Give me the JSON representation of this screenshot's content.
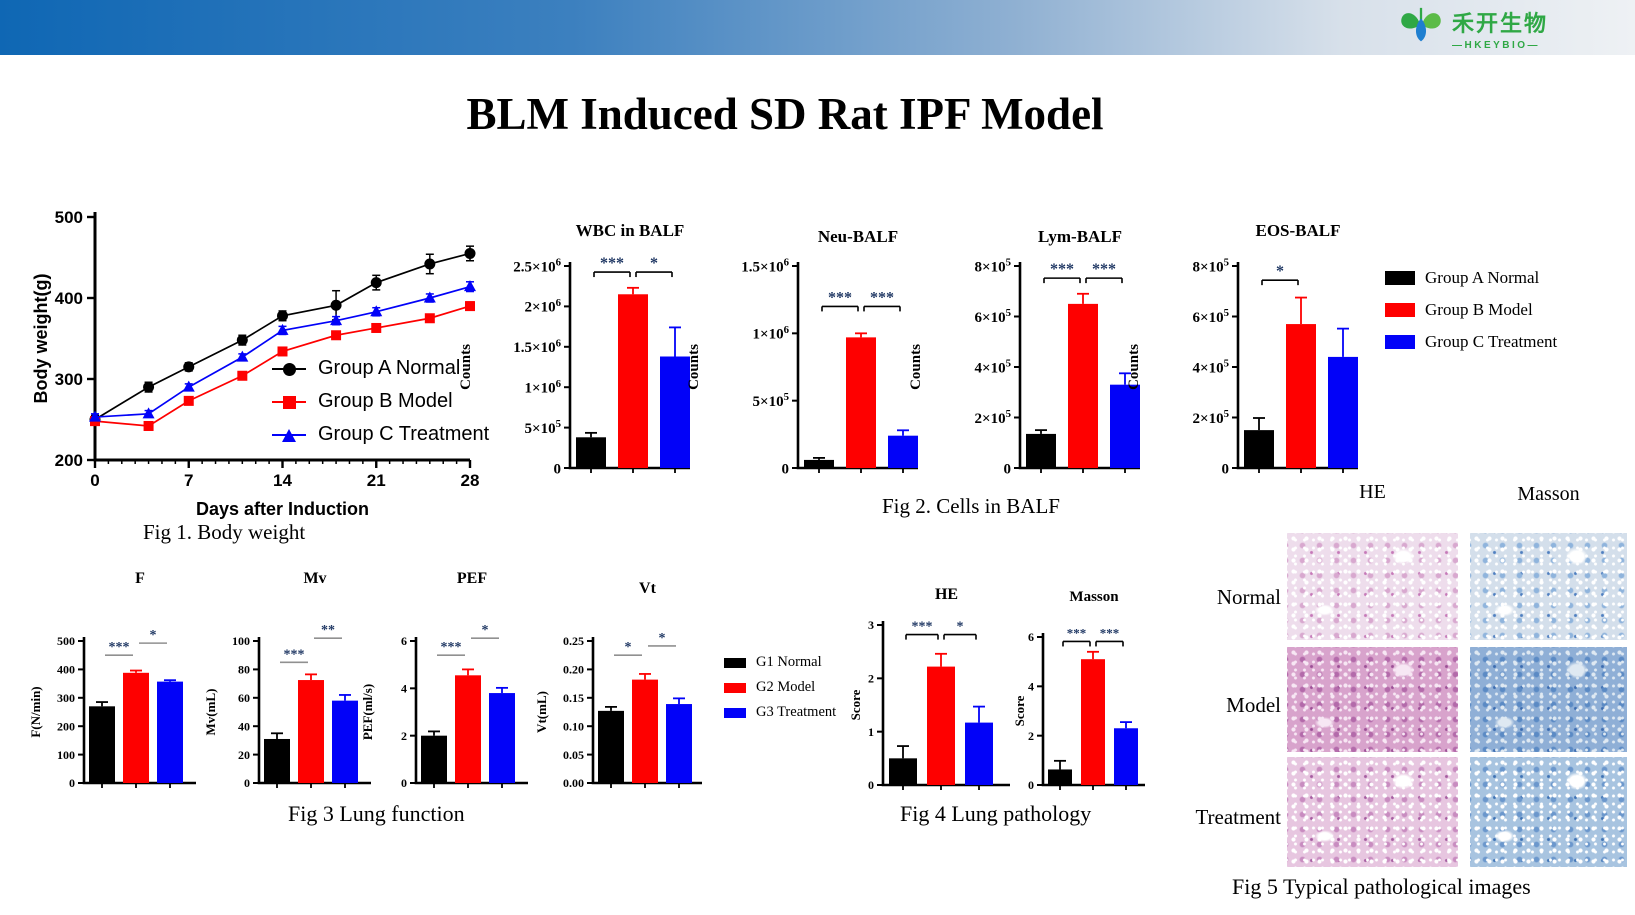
{
  "header": {
    "bar_colors": [
      "#0f67b4",
      "#eef1f4"
    ],
    "logo": {
      "cn": "禾开生物",
      "en": "—HKEYBIO—",
      "green": "#2fa845",
      "blue": "#1f7fd0"
    }
  },
  "title": {
    "text": "BLM Induced SD Rat IPF Model"
  },
  "groups": {
    "a": {
      "label": "Group A Normal",
      "color": "#000000"
    },
    "b": {
      "label": "Group B Model",
      "color": "#fe0000"
    },
    "c": {
      "label": "Group C Treatment",
      "color": "#0202f8"
    }
  },
  "fig3_legend": [
    "G1 Normal",
    "G2 Model",
    "G3 Treatment"
  ],
  "style": {
    "bar_colors": [
      "#000000",
      "#fe0000",
      "#0202f8"
    ],
    "star_color": "#203864",
    "sig_line_black": "#000000",
    "sig_line_gray": "#909090"
  },
  "captions": {
    "fig1": "Fig 1. Body weight",
    "fig2": "Fig 2. Cells in BALF",
    "fig3": "Fig 3 Lung function",
    "fig4": "Fig 4 Lung pathology",
    "fig5": "Fig 5 Typical pathological images"
  },
  "fig5": {
    "col_headers": [
      "HE",
      "Masson"
    ],
    "row_labels": [
      "Normal",
      "Model",
      "Treatment"
    ],
    "images": [
      {
        "name": "he-normal",
        "palette": {
          "base": "#eeddec",
          "dot": "#ffffff",
          "blob": "#d8a8cf",
          "accent": "#c679b8"
        }
      },
      {
        "name": "masson-normal",
        "palette": {
          "base": "#d4dfeb",
          "dot": "#ffffff",
          "blob": "#8fb4dc",
          "accent": "#4f7fc0"
        }
      },
      {
        "name": "he-model",
        "palette": {
          "base": "#d8a3cc",
          "dot": "#f7e7f4",
          "blob": "#b36aaa",
          "accent": "#9c4f96"
        }
      },
      {
        "name": "masson-model",
        "palette": {
          "base": "#8fafd6",
          "dot": "#dfe9f2",
          "blob": "#5b8ac4",
          "accent": "#3c6cb0"
        }
      },
      {
        "name": "he-treatment",
        "palette": {
          "base": "#e7c6e0",
          "dot": "#ffffff",
          "blob": "#c88cc0",
          "accent": "#a55ca0"
        }
      },
      {
        "name": "masson-treatment",
        "palette": {
          "base": "#a8c4e0",
          "dot": "#ffffff",
          "blob": "#6b97cc",
          "accent": "#3f72b4"
        }
      }
    ]
  },
  "chart_data": [
    {
      "id": "body_weight",
      "type": "line",
      "xlabel": "Days after Induction",
      "ylabel": "Body weight(g)",
      "xmin": 0,
      "xmax": 28,
      "ymin": 200,
      "ymax": 500,
      "xticks": [
        0,
        7,
        14,
        21,
        28
      ],
      "yticks": [
        200,
        300,
        400,
        500
      ],
      "x": [
        0,
        4,
        7,
        11,
        14,
        18,
        21,
        25,
        28
      ],
      "series": [
        {
          "name": "Group A Normal",
          "color": "#000000",
          "marker": "circle",
          "values": [
            250,
            290,
            315,
            348,
            378,
            391,
            419,
            442,
            455
          ],
          "errors": [
            5,
            6,
            5,
            6,
            6,
            18,
            9,
            12,
            9
          ]
        },
        {
          "name": "Group B Model",
          "color": "#fe0000",
          "marker": "square",
          "values": [
            248,
            242,
            273,
            304,
            334,
            354,
            363,
            375,
            390
          ],
          "errors": [
            3,
            5,
            4,
            4,
            4,
            4,
            4,
            4,
            5
          ]
        },
        {
          "name": "Group C Treatment",
          "color": "#0202f8",
          "marker": "triangle",
          "values": [
            253,
            257,
            290,
            327,
            360,
            372,
            383,
            400,
            414
          ],
          "errors": [
            4,
            4,
            4,
            4,
            5,
            5,
            5,
            5,
            6
          ]
        }
      ],
      "legend_position": "inside-right-bottom"
    },
    {
      "id": "wbc",
      "type": "bar",
      "title": "WBC in BALF",
      "ylabel": "Counts",
      "categories": [
        "Group A Normal",
        "Group B Model",
        "Group C Treatment"
      ],
      "ymax": 2500000,
      "yticks": [
        {
          "v": 0,
          "t": "0"
        },
        {
          "v": 500000,
          "t": "5×10^5"
        },
        {
          "v": 1000000,
          "t": "1×10^6"
        },
        {
          "v": 1500000,
          "t": "1.5×10^6"
        },
        {
          "v": 2000000,
          "t": "2×10^6"
        },
        {
          "v": 2500000,
          "t": "2.5×10^6"
        }
      ],
      "values": [
        380000,
        2150000,
        1380000
      ],
      "errors": [
        55000,
        80000,
        360000
      ],
      "sig": [
        {
          "a": 0,
          "b": 1,
          "label": "***",
          "y": 0.97
        },
        {
          "a": 1,
          "b": 2,
          "label": "*",
          "y": 0.97
        }
      ]
    },
    {
      "id": "neu",
      "type": "bar",
      "title": "Neu-BALF",
      "ylabel": "Counts",
      "categories": [
        "Group A Normal",
        "Group B Model",
        "Group C Treatment"
      ],
      "ymax": 1500000,
      "yticks": [
        {
          "v": 0,
          "t": "0"
        },
        {
          "v": 500000,
          "t": "5×10^5"
        },
        {
          "v": 1000000,
          "t": "1×10^6"
        },
        {
          "v": 1500000,
          "t": "1.5×10^6"
        }
      ],
      "values": [
        60000,
        970000,
        240000
      ],
      "errors": [
        15000,
        30000,
        40000
      ],
      "sig": [
        {
          "a": 0,
          "b": 1,
          "label": "***",
          "y": 0.8
        },
        {
          "a": 1,
          "b": 2,
          "label": "***",
          "y": 0.8
        }
      ]
    },
    {
      "id": "lym",
      "type": "bar",
      "title": "Lym-BALF",
      "ylabel": "Counts",
      "categories": [
        "Group A Normal",
        "Group B Model",
        "Group C Treatment"
      ],
      "ymax": 800000,
      "yticks": [
        {
          "v": 0,
          "t": "0"
        },
        {
          "v": 200000,
          "t": "2×10^5"
        },
        {
          "v": 400000,
          "t": "4×10^5"
        },
        {
          "v": 600000,
          "t": "6×10^5"
        },
        {
          "v": 800000,
          "t": "8×10^5"
        }
      ],
      "values": [
        135000,
        650000,
        330000
      ],
      "errors": [
        15000,
        40000,
        45000
      ],
      "sig": [
        {
          "a": 0,
          "b": 1,
          "label": "***",
          "y": 0.94
        },
        {
          "a": 1,
          "b": 2,
          "label": "***",
          "y": 0.94
        }
      ]
    },
    {
      "id": "eos",
      "type": "bar",
      "title": "EOS-BALF",
      "ylabel": "Counts",
      "categories": [
        "Group A Normal",
        "Group B Model",
        "Group C Treatment"
      ],
      "ymax": 800000,
      "yticks": [
        {
          "v": 0,
          "t": "0"
        },
        {
          "v": 200000,
          "t": "2×10^5"
        },
        {
          "v": 400000,
          "t": "4×10^5"
        },
        {
          "v": 600000,
          "t": "6×10^5"
        },
        {
          "v": 800000,
          "t": "8×10^5"
        }
      ],
      "values": [
        150000,
        570000,
        440000
      ],
      "errors": [
        48000,
        105000,
        112000
      ],
      "sig": [
        {
          "a": 0,
          "b": 1,
          "label": "*",
          "y": 0.93
        }
      ]
    },
    {
      "id": "f",
      "type": "bar",
      "title": "F",
      "ylabel": "F(N/min)",
      "categories": [
        "G1 Normal",
        "G2 Model",
        "G3 Treatment"
      ],
      "ymax": 500,
      "yticks": [
        {
          "v": 0,
          "t": "0"
        },
        {
          "v": 100,
          "t": "100"
        },
        {
          "v": 200,
          "t": "200"
        },
        {
          "v": 300,
          "t": "300"
        },
        {
          "v": 400,
          "t": "400"
        },
        {
          "v": 500,
          "t": "500"
        }
      ],
      "values": [
        270,
        388,
        357
      ],
      "errors": [
        15,
        8,
        5
      ],
      "sig": [
        {
          "a": 0,
          "b": 1,
          "label": "***",
          "y": 0.9
        },
        {
          "a": 1,
          "b": 2,
          "label": "*",
          "y": 0.985
        }
      ]
    },
    {
      "id": "mv",
      "type": "bar",
      "title": "Mv",
      "ylabel": "Mv(mL)",
      "categories": [
        "G1 Normal",
        "G2 Model",
        "G3 Treatment"
      ],
      "ymax": 100,
      "yticks": [
        {
          "v": 0,
          "t": "0"
        },
        {
          "v": 20,
          "t": "20"
        },
        {
          "v": 40,
          "t": "40"
        },
        {
          "v": 60,
          "t": "60"
        },
        {
          "v": 80,
          "t": "80"
        },
        {
          "v": 100,
          "t": "100"
        }
      ],
      "values": [
        31,
        72.5,
        58
      ],
      "errors": [
        4,
        4,
        4
      ],
      "sig": [
        {
          "a": 0,
          "b": 1,
          "label": "***",
          "y": 0.85
        },
        {
          "a": 1,
          "b": 2,
          "label": "**",
          "y": 1.02
        }
      ]
    },
    {
      "id": "pef",
      "type": "bar",
      "title": "PEF",
      "ylabel": "PEF(ml/s)",
      "categories": [
        "G1 Normal",
        "G2 Model",
        "G3 Treatment"
      ],
      "ymax": 6,
      "yticks": [
        {
          "v": 0,
          "t": "0"
        },
        {
          "v": 2,
          "t": "2"
        },
        {
          "v": 4,
          "t": "4"
        },
        {
          "v": 6,
          "t": "6"
        }
      ],
      "values": [
        2.0,
        4.55,
        3.8
      ],
      "errors": [
        0.18,
        0.25,
        0.22
      ],
      "sig": [
        {
          "a": 0,
          "b": 1,
          "label": "***",
          "y": 0.9
        },
        {
          "a": 1,
          "b": 2,
          "label": "*",
          "y": 1.02
        }
      ]
    },
    {
      "id": "vt",
      "type": "bar",
      "title": "Vt",
      "ylabel": "Vt(mL)",
      "categories": [
        "G1 Normal",
        "G2 Model",
        "G3 Treatment"
      ],
      "ymax": 0.25,
      "yticks": [
        {
          "v": 0,
          "t": "0.00"
        },
        {
          "v": 0.05,
          "t": "0.05"
        },
        {
          "v": 0.1,
          "t": "0.10"
        },
        {
          "v": 0.15,
          "t": "0.15"
        },
        {
          "v": 0.2,
          "t": "0.20"
        },
        {
          "v": 0.25,
          "t": "0.25"
        }
      ],
      "values": [
        0.127,
        0.182,
        0.139
      ],
      "errors": [
        0.007,
        0.01,
        0.01
      ],
      "sig": [
        {
          "a": 0,
          "b": 1,
          "label": "*",
          "y": 0.9
        },
        {
          "a": 1,
          "b": 2,
          "label": "*",
          "y": 0.965
        }
      ]
    },
    {
      "id": "he_score",
      "type": "bar",
      "title": "HE",
      "ylabel": "Score",
      "categories": [
        "G1 Normal",
        "G2 Model",
        "G3 Treatment"
      ],
      "ymax": 3,
      "yticks": [
        {
          "v": 0,
          "t": "0"
        },
        {
          "v": 1,
          "t": "1"
        },
        {
          "v": 2,
          "t": "2"
        },
        {
          "v": 3,
          "t": "3"
        }
      ],
      "values": [
        0.5,
        2.22,
        1.17
      ],
      "errors": [
        0.23,
        0.24,
        0.3
      ],
      "sig": [
        {
          "a": 0,
          "b": 1,
          "label": "***",
          "y": 0.94
        },
        {
          "a": 1,
          "b": 2,
          "label": "*",
          "y": 0.94
        }
      ]
    },
    {
      "id": "masson_score",
      "type": "bar",
      "title": "Masson",
      "ylabel": "Score",
      "categories": [
        "G1 Normal",
        "G2 Model",
        "G3 Treatment"
      ],
      "ymax": 6,
      "yticks": [
        {
          "v": 0,
          "t": "0"
        },
        {
          "v": 2,
          "t": "2"
        },
        {
          "v": 4,
          "t": "4"
        },
        {
          "v": 6,
          "t": "6"
        }
      ],
      "values": [
        0.63,
        5.1,
        2.3
      ],
      "errors": [
        0.35,
        0.3,
        0.25
      ],
      "sig": [
        {
          "a": 0,
          "b": 1,
          "label": "***",
          "y": 0.97
        },
        {
          "a": 1,
          "b": 2,
          "label": "***",
          "y": 0.97
        }
      ]
    }
  ]
}
